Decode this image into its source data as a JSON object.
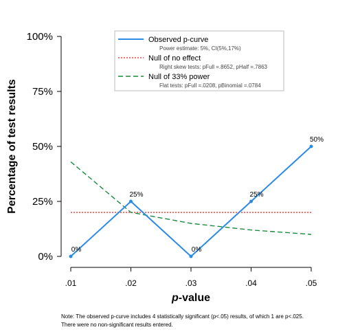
{
  "chart_data": {
    "type": "line",
    "xlabel": "p-value",
    "ylabel": "Percentage of test results",
    "x": [
      0.01,
      0.02,
      0.03,
      0.04,
      0.05
    ],
    "x_tick_labels": [
      ".01",
      ".02",
      ".03",
      ".04",
      ".05"
    ],
    "ylim": [
      0,
      100
    ],
    "y_ticks": [
      0,
      25,
      50,
      75,
      100
    ],
    "y_tick_labels": [
      "0%",
      "25%",
      "50%",
      "75%",
      "100%"
    ],
    "grid": false,
    "legend_position": "top-right",
    "series": [
      {
        "name": "Observed p-curve",
        "subtitle": "Power estimate: 5%, CI(5%,17%)",
        "color": "#2b8ae6",
        "style": "solid",
        "values": [
          0,
          25,
          0,
          25,
          50
        ],
        "point_labels": [
          "0%",
          "25%",
          "0%",
          "25%",
          "50%"
        ]
      },
      {
        "name": "Null of no effect",
        "subtitle": "Right skew tests: pFull =.8652, pHalf =.7863",
        "color": "#ff3b3b",
        "style": "dotted",
        "values": [
          20,
          20,
          20,
          20,
          20
        ]
      },
      {
        "name": "Null of 33% power",
        "subtitle": "Flat tests:          pFull =.0208, pBinomial =.0784",
        "color": "#1b8a3c",
        "style": "dashed",
        "values": [
          43,
          20,
          15,
          12,
          10
        ]
      }
    ],
    "note": [
      "Note: The observed p-curve includes 4 statistically significant (p<.05) results, of which 1 are p<.025.",
      "There were no non-significant results entered."
    ]
  }
}
